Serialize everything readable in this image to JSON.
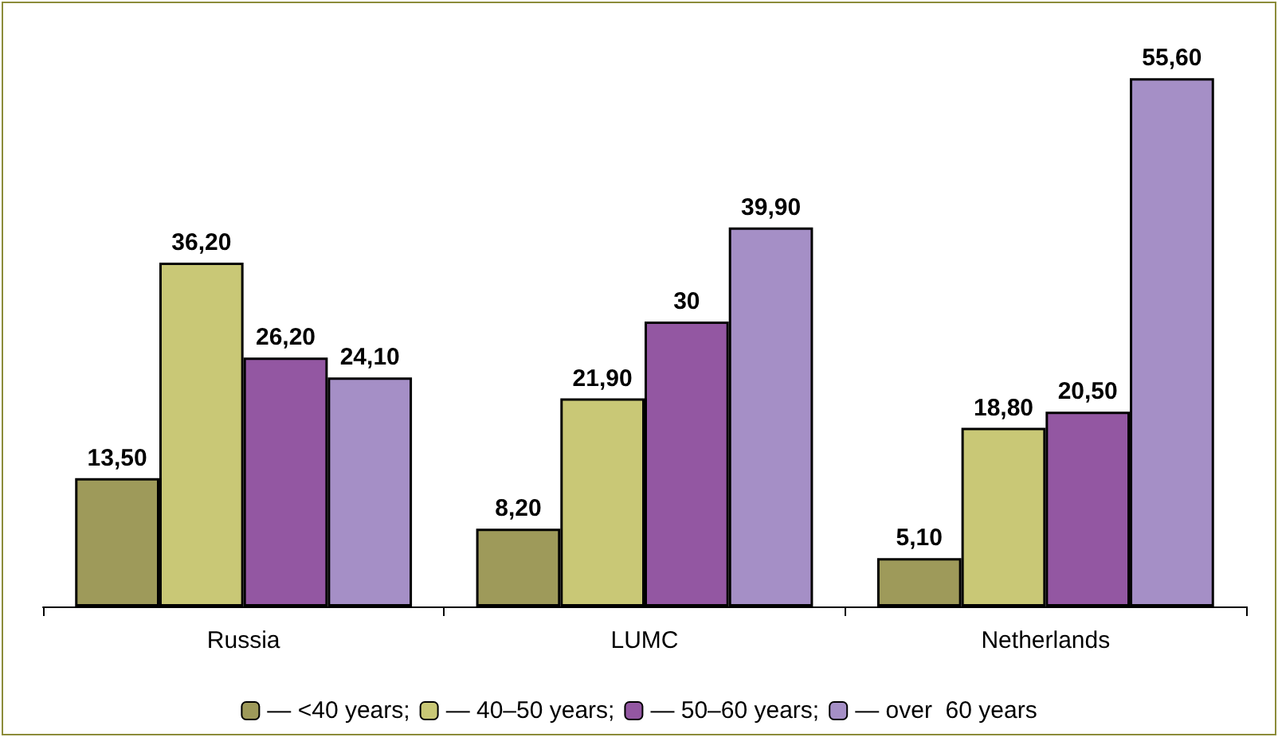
{
  "chart_data": {
    "type": "bar",
    "categories": [
      "Russia",
      "LUMC",
      "Netherlands"
    ],
    "series": [
      {
        "name": "— <40 years;",
        "color": "#9e9a5a",
        "values": [
          13.5,
          8.2,
          5.1
        ],
        "value_labels": [
          "13,50",
          "8,20",
          "5,10"
        ]
      },
      {
        "name": "— 40–50 years;",
        "color": "#c9c876",
        "values": [
          36.2,
          21.9,
          18.8
        ],
        "value_labels": [
          "36,20",
          "21,90",
          "18,80"
        ]
      },
      {
        "name": "— 50–60 years;",
        "color": "#9357a2",
        "values": [
          26.2,
          30,
          20.5
        ],
        "value_labels": [
          "26,20",
          "30",
          "20,50"
        ]
      },
      {
        "name": "— over  60 years",
        "color": "#a58fc6",
        "values": [
          24.1,
          39.9,
          55.6
        ],
        "value_labels": [
          "24,10",
          "39,90",
          "55,60"
        ]
      }
    ],
    "legend": "bottom",
    "grid": false
  }
}
